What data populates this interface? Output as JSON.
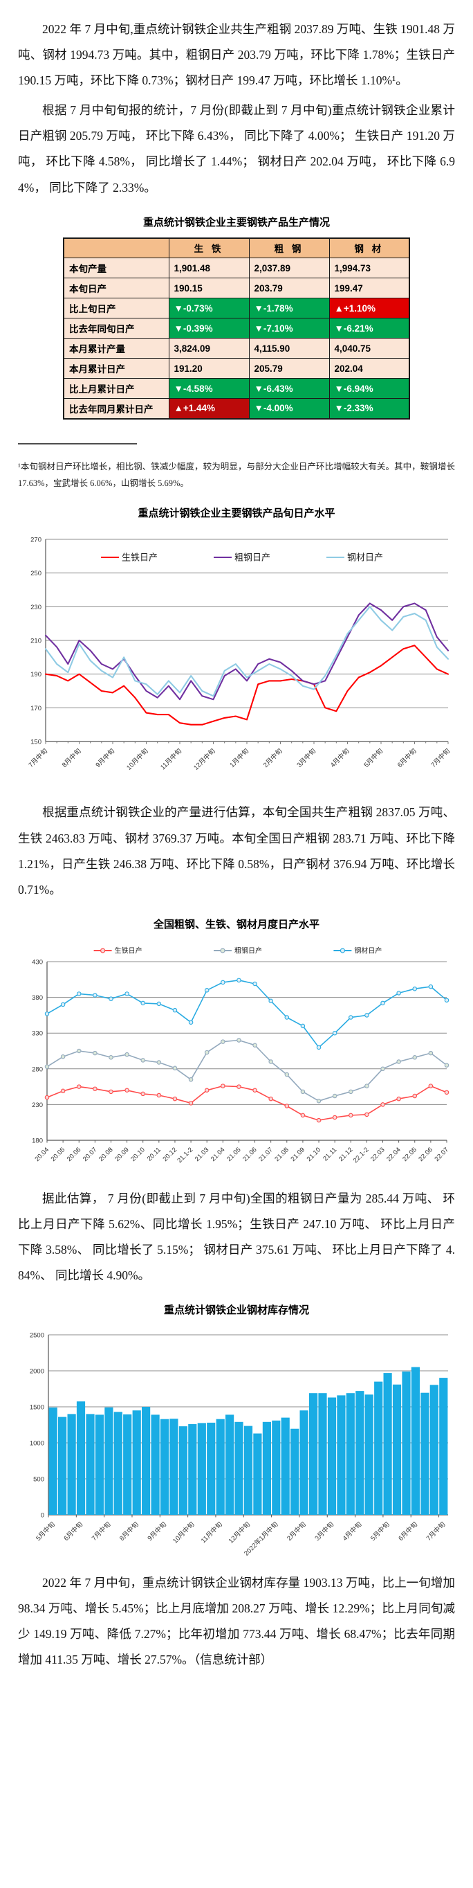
{
  "paragraphs": {
    "p1": "2022 年 7 月中旬,重点统计钢铁企业共生产粗钢 2037.89 万吨、生铁 1901.48 万吨、钢材 1994.73 万吨。其中，粗钢日产 203.79 万吨，环比下降 1.78%；生铁日产 190.15 万吨，环比下降 0.73%；钢材日产 199.47 万吨，环比增长 1.10%¹。",
    "p2": "根据 7 月中旬旬报的统计，7 月份(即截止到 7 月中旬)重点统计钢铁企业累计日产粗钢 205.79 万吨， 环比下降 6.43%， 同比下降了 4.00%； 生铁日产 191.20 万吨， 环比下降 4.58%， 同比增长了 1.44%； 钢材日产 202.04 万吨， 环比下降 6.94%， 同比下降了 2.33%。",
    "p3": "根据重点统计钢铁企业的产量进行估算，本旬全国共生产粗钢 2837.05 万吨、生铁 2463.83 万吨、钢材 3769.37 万吨。本旬全国日产粗钢 283.71 万吨、环比下降 1.21%，日产生铁 246.38 万吨、环比下降 0.58%，日产钢材 376.94 万吨、环比增长 0.71%。",
    "p4": "据此估算， 7 月份(即截止到 7 月中旬)全国的粗钢日产量为 285.44 万吨、 环比上月日产下降 5.62%、同比增长 1.95%；生铁日产 247.10 万吨、 环比上月日产下降 3.58%、 同比增长了 5.15%； 钢材日产 375.61 万吨、 环比上月日产下降了 4.84%、 同比增长 4.90%。",
    "p5": "2022 年 7 月中旬，重点统计钢铁企业钢材库存量 1903.13 万吨，比上一旬增加 98.34 万吨、增长 5.45%；比上月底增加 208.27 万吨、增长 12.29%；比上月同旬减少 149.19 万吨、降低 7.27%；比年初增加 773.44 万吨、增长 68.47%；比去年同期增加 411.35 万吨、增长 27.57%。（信息统计部）"
  },
  "footnote": "¹本旬钢材日产环比增长，相比钢、铁减少幅度，较为明显，与部分大企业日产环比增幅较大有关。其中，鞍钢增长 17.63%，宝武增长 6.06%，山钢增长 5.69%。",
  "table": {
    "title": "重点统计钢铁企业主要钢铁产品生产情况",
    "columns": [
      "",
      "生 铁",
      "粗 钢",
      "钢 材"
    ],
    "rows": [
      {
        "label": "本旬产量",
        "values": [
          "1,901.48",
          "2,037.89",
          "1,994.73"
        ],
        "types": [
          "plain",
          "plain",
          "plain"
        ]
      },
      {
        "label": "本旬日产",
        "values": [
          "190.15",
          "203.79",
          "199.47"
        ],
        "types": [
          "plain",
          "plain",
          "plain"
        ]
      },
      {
        "label": "比上旬日产",
        "values": [
          "▼-0.73%",
          "▼-1.78%",
          "▲+1.10%"
        ],
        "types": [
          "down",
          "down",
          "up"
        ]
      },
      {
        "label": "比去年同旬日产",
        "values": [
          "▼-0.39%",
          "▼-7.10%",
          "▼-6.21%"
        ],
        "types": [
          "down",
          "down",
          "down"
        ]
      },
      {
        "label": "本月累计产量",
        "values": [
          "3,824.09",
          "4,115.90",
          "4,040.75"
        ],
        "types": [
          "plain",
          "plain",
          "plain"
        ]
      },
      {
        "label": "本月累计日产",
        "values": [
          "191.20",
          "205.79",
          "202.04"
        ],
        "types": [
          "plain",
          "plain",
          "plain"
        ]
      },
      {
        "label": "比上月累计日产",
        "values": [
          "▼-4.58%",
          "▼-6.43%",
          "▼-6.94%"
        ],
        "types": [
          "down",
          "down",
          "down"
        ]
      },
      {
        "label": "比去年同月累计日产",
        "values": [
          "▲+1.44%",
          "▼-4.00%",
          "▼-2.33%"
        ],
        "types": [
          "up-dark",
          "down",
          "down"
        ]
      }
    ],
    "colors": {
      "header_bg": "#F4BE8C",
      "row_bg": "#FBE5D6",
      "down_bg": "#00A651",
      "up_bg": "#E00000",
      "up_dark_bg": "#BB0A0A"
    }
  },
  "chart_data": [
    {
      "type": "line",
      "title": "重点统计钢铁企业主要钢铁产品旬日产水平",
      "xlabel": "",
      "ylabel": "",
      "ylim": [
        150,
        270
      ],
      "ystep": 20,
      "grid": true,
      "markers": false,
      "legend_position": "top-inside",
      "ticks_every": 3,
      "x_tick_labels": [
        "7月中旬",
        "8月中旬",
        "9月中旬",
        "10月中旬",
        "11月中旬",
        "12月中旬",
        "1月中旬",
        "2月中旬",
        "3月中旬",
        "4月中旬",
        "5月中旬",
        "6月中旬",
        "7月中旬"
      ],
      "series": [
        {
          "name": "生铁日产",
          "color": "#FF0000",
          "values": [
            190,
            189,
            186,
            190,
            185,
            180,
            179,
            183,
            176,
            167,
            166,
            166,
            161,
            160,
            160,
            162,
            164,
            165,
            163,
            184,
            186,
            186,
            187,
            186,
            184,
            170,
            168,
            180,
            188,
            191,
            195,
            200,
            205,
            207,
            200,
            193,
            190
          ]
        },
        {
          "name": "粗钢日产",
          "color": "#7030A0",
          "values": [
            213,
            206,
            196,
            210,
            204,
            196,
            193,
            199,
            189,
            180,
            176,
            183,
            175,
            186,
            177,
            175,
            189,
            193,
            186,
            196,
            199,
            197,
            192,
            186,
            184,
            186,
            199,
            212,
            225,
            232,
            228,
            222,
            230,
            232,
            228,
            212,
            204
          ]
        },
        {
          "name": "钢材日产",
          "color": "#8FCBE4",
          "values": [
            205,
            196,
            191,
            208,
            198,
            192,
            188,
            200,
            186,
            184,
            178,
            186,
            179,
            189,
            180,
            177,
            192,
            196,
            188,
            192,
            196,
            193,
            189,
            183,
            181,
            189,
            201,
            214,
            222,
            230,
            222,
            216,
            224,
            226,
            222,
            206,
            199
          ]
        }
      ]
    },
    {
      "type": "line",
      "title": "全国粗钢、生铁、钢材月度日产水平",
      "xlabel": "",
      "ylabel": "",
      "ylim": [
        180,
        430
      ],
      "ystep": 50,
      "grid": true,
      "markers": true,
      "legend_position": "top",
      "ticks_every": 1,
      "x_tick_labels": [
        "20.04",
        "20.05",
        "20.06",
        "20.07",
        "20.08",
        "20.09",
        "20.10",
        "20.11",
        "20.12",
        "21.1-2",
        "21.03",
        "21.04",
        "21.05",
        "21.06",
        "21.07",
        "21.08",
        "21.09",
        "21.10",
        "21.11",
        "21.12",
        "22.1-2",
        "22.03",
        "22.04",
        "22.05",
        "22.06",
        "22.07"
      ],
      "series": [
        {
          "name": "生铁日产",
          "color": "#FF4B4B",
          "marker_fill": "#F8D7D7",
          "values": [
            240,
            249,
            255,
            252,
            248,
            250,
            245,
            243,
            238,
            232,
            250,
            256,
            255,
            250,
            238,
            228,
            215,
            208,
            212,
            215,
            216,
            230,
            238,
            242,
            256,
            247
          ]
        },
        {
          "name": "粗钢日产",
          "color": "#93A9BD",
          "marker_fill": "#DCE9DA",
          "values": [
            283,
            297,
            305,
            302,
            296,
            300,
            292,
            289,
            281,
            265,
            303,
            318,
            320,
            313,
            290,
            272,
            248,
            235,
            242,
            248,
            256,
            280,
            290,
            296,
            302,
            285
          ]
        },
        {
          "name": "钢材日产",
          "color": "#29ABE2",
          "marker_fill": "#DDEFF9",
          "values": [
            357,
            370,
            385,
            383,
            378,
            385,
            372,
            371,
            362,
            345,
            390,
            401,
            404,
            399,
            375,
            352,
            340,
            310,
            330,
            352,
            355,
            372,
            386,
            392,
            395,
            376
          ]
        }
      ]
    },
    {
      "type": "bar",
      "title": "重点统计钢铁企业钢材库存情况",
      "xlabel": "",
      "ylabel": "",
      "ylim": [
        0,
        2500
      ],
      "ystep": 500,
      "grid": true,
      "color": "#19ACE4",
      "label_every": 3,
      "x_tick_labels": [
        "5月中旬",
        "6月中旬",
        "7月中旬",
        "8月中旬",
        "9月中旬",
        "10月中旬",
        "11月中旬",
        "12月中旬",
        "2022年1月中旬",
        "2月中旬",
        "3月中旬",
        "4月中旬",
        "5月中旬",
        "6月中旬",
        "7月中旬"
      ],
      "values": [
        1490,
        1360,
        1400,
        1575,
        1400,
        1390,
        1492,
        1430,
        1395,
        1450,
        1500,
        1390,
        1330,
        1335,
        1230,
        1260,
        1275,
        1280,
        1330,
        1390,
        1290,
        1235,
        1130,
        1290,
        1310,
        1350,
        1195,
        1450,
        1690,
        1690,
        1630,
        1660,
        1690,
        1720,
        1670,
        1850,
        1970,
        1810,
        1990,
        2052,
        1695,
        1805,
        1903
      ]
    }
  ]
}
